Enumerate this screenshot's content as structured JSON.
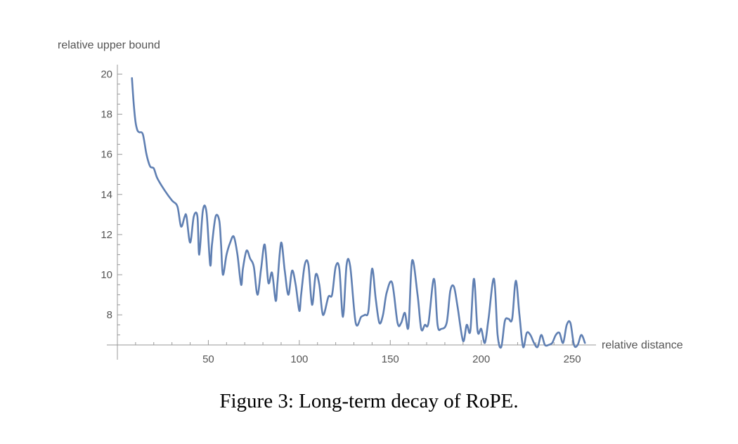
{
  "caption": "Figure 3: Long-term decay of RoPE.",
  "chart_data": {
    "type": "line",
    "title": "",
    "xlabel": "relative distance",
    "ylabel": "relative upper bound",
    "xlim": [
      0,
      260
    ],
    "ylim": [
      6.5,
      20.4
    ],
    "grid": false,
    "legend": "none",
    "line_color": "#5f7fb2",
    "x_ticks": [
      50,
      100,
      150,
      200,
      250
    ],
    "x_tick_labels": [
      "50",
      "100",
      "150",
      "200",
      "250"
    ],
    "y_ticks": [
      8,
      10,
      12,
      14,
      16,
      18,
      20
    ],
    "y_tick_labels": [
      "8",
      "10",
      "12",
      "14",
      "16",
      "18",
      "20"
    ],
    "series": [
      {
        "x": [
          8,
          9,
          10,
          11,
          12,
          14,
          16,
          18,
          20,
          22,
          26,
          30,
          33,
          35,
          37,
          38,
          40,
          42,
          44,
          45,
          47,
          49,
          51,
          52,
          54,
          56,
          57,
          58,
          60,
          62,
          64,
          66,
          68,
          69,
          71,
          73,
          75,
          77,
          79,
          81,
          83,
          85,
          87,
          88,
          90,
          92,
          94,
          96,
          98,
          100,
          101,
          103,
          105,
          107,
          109,
          111,
          113,
          116,
          118,
          120,
          122,
          124,
          126,
          128,
          131,
          134,
          136,
          138,
          140,
          142,
          144,
          146,
          148,
          151,
          154,
          156,
          158,
          160,
          162,
          165,
          167,
          169,
          171,
          174,
          176,
          178,
          181,
          183,
          185,
          187,
          190,
          192,
          194,
          196,
          198,
          200,
          202,
          204,
          207,
          209,
          211,
          213,
          215,
          217,
          219,
          221,
          223,
          225,
          227,
          229,
          231,
          233,
          235,
          237,
          239,
          241,
          243,
          245,
          247,
          249,
          251,
          253,
          255,
          257
        ],
        "values": [
          19.8,
          18.5,
          17.6,
          17.2,
          17.1,
          17.0,
          16.0,
          15.4,
          15.3,
          14.8,
          14.2,
          13.7,
          13.4,
          12.4,
          12.9,
          12.9,
          11.6,
          12.9,
          12.9,
          11.0,
          13.2,
          13.1,
          10.5,
          11.5,
          12.9,
          12.7,
          11.5,
          10.0,
          11.0,
          11.6,
          11.9,
          11.0,
          9.5,
          10.3,
          11.2,
          10.8,
          10.4,
          9.0,
          10.3,
          11.5,
          9.6,
          10.1,
          8.7,
          9.6,
          11.6,
          10.2,
          9.0,
          10.2,
          9.5,
          8.2,
          9.0,
          10.5,
          10.5,
          8.5,
          10.0,
          9.5,
          8.0,
          8.9,
          9.0,
          10.4,
          10.3,
          7.9,
          10.5,
          10.4,
          7.6,
          7.9,
          8.0,
          8.2,
          10.3,
          8.8,
          7.6,
          8.0,
          9.1,
          9.6,
          7.6,
          7.6,
          8.1,
          7.4,
          10.7,
          9.0,
          7.3,
          7.5,
          7.6,
          9.8,
          7.5,
          7.3,
          7.6,
          9.2,
          9.4,
          8.4,
          6.7,
          7.5,
          7.2,
          9.8,
          7.2,
          7.3,
          6.6,
          7.8,
          9.8,
          7.0,
          6.4,
          7.7,
          7.8,
          7.8,
          9.7,
          8.0,
          6.4,
          7.1,
          7.0,
          6.6,
          6.4,
          7.0,
          6.5,
          6.5,
          6.6,
          7.0,
          7.1,
          6.6,
          7.5,
          7.6,
          6.5,
          6.5,
          7.0,
          6.6
        ]
      }
    ]
  }
}
